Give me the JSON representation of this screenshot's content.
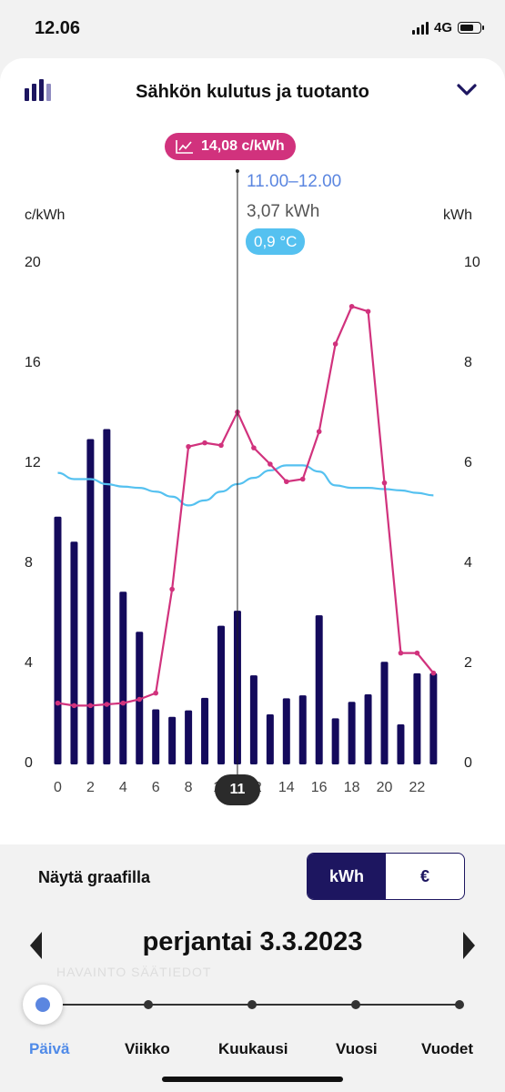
{
  "status": {
    "time": "12.06",
    "network": "4G"
  },
  "header": {
    "title": "Sähkön kulutus ja tuotanto",
    "icon": "bar-chart-icon",
    "chevron": "chevron-down-icon"
  },
  "tooltip": {
    "price": "14,08 c/kWh",
    "time": "11.00–12.00",
    "consumption": "3,07 kWh",
    "temperature": "0,9 °C"
  },
  "selected_hour": "11",
  "colors": {
    "bars": "#140a5c",
    "price_line": "#d1327d",
    "temp_line": "#55c1f0",
    "accent": "#5b86e0"
  },
  "chart_data": {
    "type": "bar",
    "x": [
      0,
      1,
      2,
      3,
      4,
      5,
      6,
      7,
      8,
      9,
      10,
      11,
      12,
      13,
      14,
      15,
      16,
      17,
      18,
      19,
      20,
      21,
      22,
      23
    ],
    "x_ticks": [
      "0",
      "2",
      "4",
      "6",
      "8",
      "10",
      "12",
      "14",
      "16",
      "18",
      "20",
      "22"
    ],
    "left_axis": {
      "label": "c/kWh",
      "ticks": [
        "0",
        "4",
        "8",
        "12",
        "16",
        "20"
      ],
      "range": [
        0,
        20
      ]
    },
    "right_axis": {
      "label": "kWh",
      "ticks": [
        "0",
        "2",
        "4",
        "6",
        "8",
        "10"
      ],
      "range": [
        0,
        10
      ]
    },
    "series": [
      {
        "type": "bar",
        "axis": "right",
        "values": [
          4.95,
          4.45,
          6.5,
          6.7,
          3.45,
          2.65,
          1.1,
          0.95,
          1.08,
          1.33,
          2.77,
          3.07,
          1.78,
          1.0,
          1.32,
          1.38,
          2.98,
          0.92,
          1.25,
          1.4,
          2.05,
          0.8,
          1.82,
          1.82
        ]
      },
      {
        "type": "line",
        "axis": "left",
        "values": [
          2.45,
          2.35,
          2.35,
          2.4,
          2.45,
          2.6,
          2.85,
          7.0,
          12.7,
          12.85,
          12.75,
          14.08,
          12.65,
          12.0,
          11.3,
          11.4,
          13.3,
          16.8,
          18.3,
          18.1,
          11.25,
          4.45,
          4.45,
          3.65
        ]
      },
      {
        "type": "line",
        "axis": "left",
        "smooth": true,
        "values": [
          11.65,
          11.4,
          11.4,
          11.2,
          11.1,
          11.05,
          10.9,
          10.7,
          10.35,
          10.55,
          10.9,
          11.2,
          11.45,
          11.75,
          11.95,
          11.95,
          11.7,
          11.15,
          11.05,
          11.05,
          11.0,
          10.95,
          10.85,
          10.75
        ]
      }
    ]
  },
  "controls": {
    "show_label": "Näytä graafilla",
    "toggle_kwh": "kWh",
    "toggle_eur": "€"
  },
  "date_nav": {
    "date": "perjantai 3.3.2023"
  },
  "faded_text": "HAVAINTO SÄÄTIEDOT",
  "periods": [
    "Päivä",
    "Viikko",
    "Kuukausi",
    "Vuosi",
    "Vuodet"
  ]
}
